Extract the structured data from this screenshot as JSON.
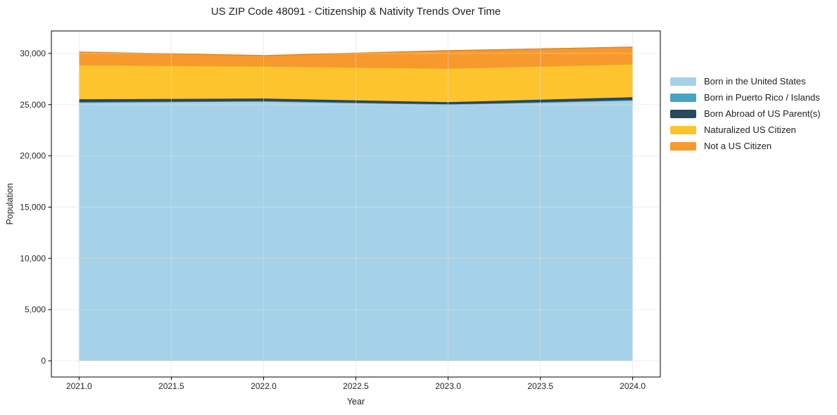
{
  "chart": {
    "title": "US ZIP Code 48091 - Citizenship & Nativity Trends Over Time",
    "xlabel": "Year",
    "ylabel": "Population"
  },
  "chart_data": {
    "type": "area",
    "stacked": true,
    "title": "US ZIP Code 48091 - Citizenship & Nativity Trends Over Time",
    "xlabel": "Year",
    "ylabel": "Population",
    "x": [
      2021,
      2022,
      2023,
      2024
    ],
    "series": [
      {
        "name": "Born in the United States",
        "color": "#a6d2e9",
        "values": [
          25200,
          25310,
          24990,
          25400
        ]
      },
      {
        "name": "Born in Puerto Rico / Islands",
        "color": "#44a5c6",
        "values": [
          50,
          40,
          40,
          50
        ]
      },
      {
        "name": "Born Abroad of US Parent(s)",
        "color": "#27495b",
        "values": [
          270,
          240,
          210,
          270
        ]
      },
      {
        "name": "Naturalized US Citizen",
        "color": "#fdc42e",
        "values": [
          3360,
          3160,
          3300,
          3240
        ]
      },
      {
        "name": "Not a US Citizen",
        "color": "#f8992d",
        "values": [
          1250,
          1040,
          1730,
          1660
        ]
      }
    ],
    "totals": [
      30130,
      29790,
      30270,
      30620
    ],
    "xticks": [
      2021.0,
      2021.5,
      2022.0,
      2022.5,
      2023.0,
      2023.5,
      2024.0
    ],
    "yticks": [
      0,
      5000,
      10000,
      15000,
      20000,
      25000,
      30000
    ],
    "xlim": [
      2020.85,
      2024.15
    ],
    "ylim": [
      -1580,
      32190
    ],
    "grid": true,
    "grid_color": "#dedede",
    "spine_color": "#000000",
    "tick_label_color": "#262626",
    "legend_position": "right-outside"
  }
}
